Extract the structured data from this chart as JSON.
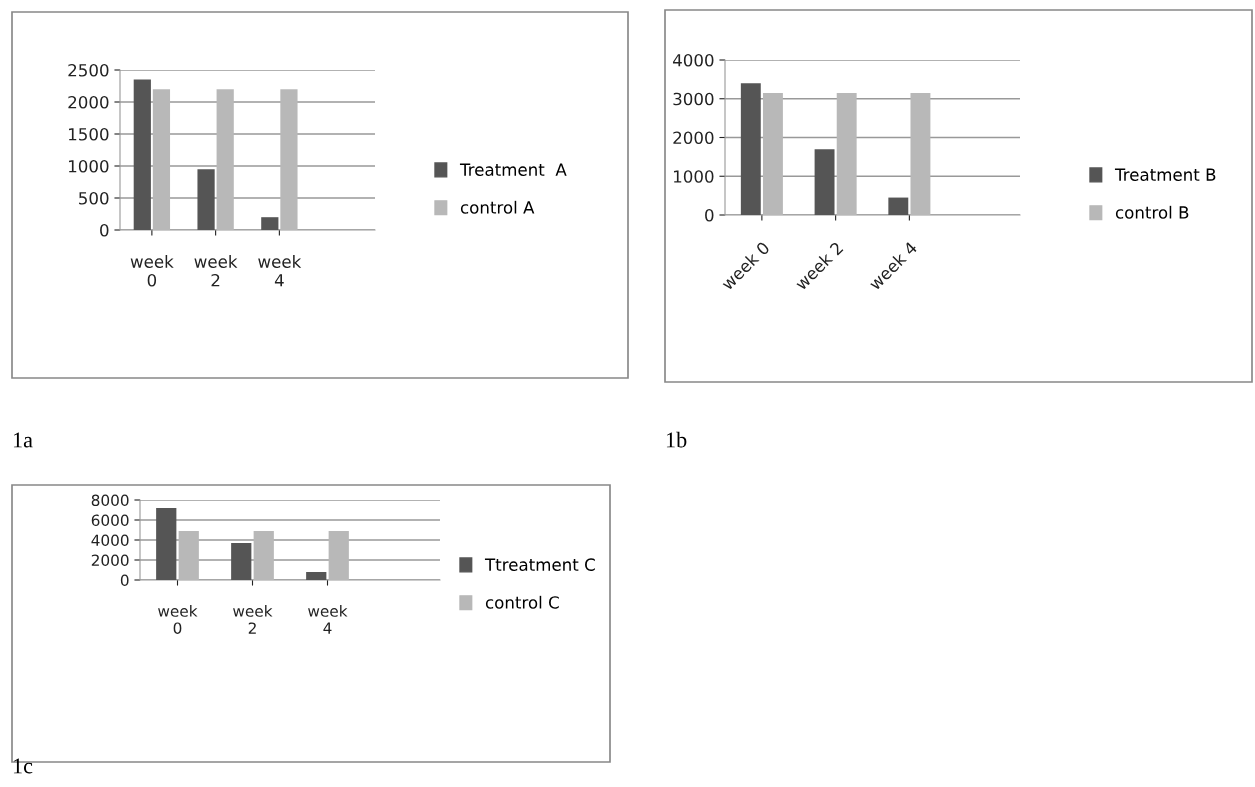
{
  "chart_data": [
    {
      "type": "bar",
      "categories": [
        "week 0",
        "week 2",
        "week 4"
      ],
      "series": [
        {
          "name": "Treatment  A",
          "color": "#555555",
          "values": [
            2350,
            950,
            200
          ]
        },
        {
          "name": "control A",
          "color": "#b8b8b8",
          "values": [
            2200,
            2200,
            2200
          ]
        }
      ],
      "ylim": [
        0,
        2500
      ],
      "yticks": [
        0,
        500,
        1000,
        1500,
        2000,
        2500
      ],
      "grid": "y",
      "legend": "right",
      "annotations": [
        "1a"
      ]
    },
    {
      "type": "bar",
      "categories": [
        "week 0",
        "week 2",
        "week 4"
      ],
      "series": [
        {
          "name": "Treatment B",
          "color": "#555555",
          "values": [
            3400,
            1700,
            450
          ]
        },
        {
          "name": "control B",
          "color": "#b8b8b8",
          "values": [
            3150,
            3150,
            3150
          ]
        }
      ],
      "ylim": [
        0,
        4000
      ],
      "yticks": [
        0,
        1000,
        2000,
        3000,
        4000
      ],
      "grid": "y",
      "legend": "right",
      "annotations": [
        "1b"
      ]
    },
    {
      "type": "bar",
      "categories": [
        "week 0",
        "week 2",
        "week 4"
      ],
      "series": [
        {
          "name": "Ttreatment C",
          "color": "#555555",
          "values": [
            7200,
            3700,
            800
          ]
        },
        {
          "name": "control C",
          "color": "#b8b8b8",
          "values": [
            4900,
            4900,
            4900
          ]
        }
      ],
      "ylim": [
        0,
        8000
      ],
      "yticks": [
        0,
        2000,
        4000,
        6000,
        8000
      ],
      "grid": "y",
      "legend": "right",
      "annotations": [
        "1c"
      ]
    }
  ]
}
